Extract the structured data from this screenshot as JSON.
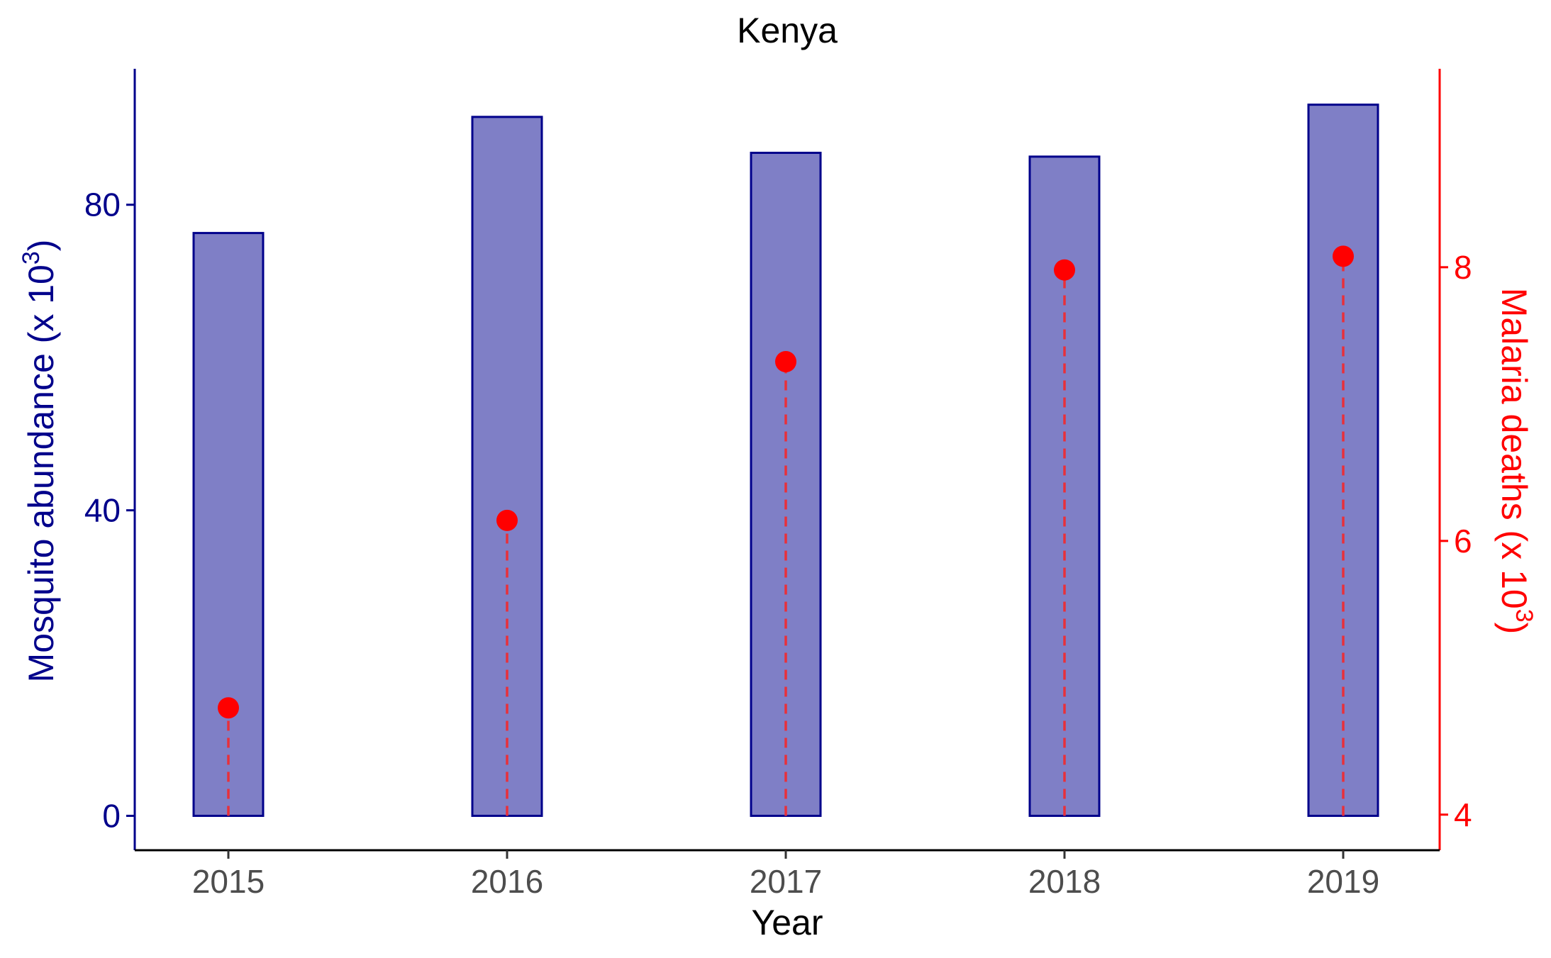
{
  "chart_data": {
    "type": "bar",
    "title": "Kenya",
    "xlabel": "Year",
    "ylabel_left": {
      "text": "Mosquito abundance (x 10",
      "sup": "3",
      "close": ")"
    },
    "ylabel_right": {
      "text": "Malaria deaths (x 10",
      "sup": "3",
      "close": ")"
    },
    "categories": [
      "2015",
      "2016",
      "2017",
      "2018",
      "2019"
    ],
    "series": [
      {
        "name": "Mosquito abundance",
        "type": "bar",
        "axis": "left",
        "values": [
          76.3,
          91.5,
          86.8,
          86.3,
          93.1
        ]
      },
      {
        "name": "Malaria deaths",
        "type": "lollipop",
        "axis": "right",
        "values": [
          4.78,
          6.15,
          7.31,
          7.98,
          8.08
        ]
      }
    ],
    "y_left": {
      "lim": [
        -4.5,
        97.8
      ],
      "ticks": [
        0,
        40,
        80
      ]
    },
    "y_right": {
      "lim": [
        3.74,
        9.45
      ],
      "ticks": [
        4,
        6,
        8
      ]
    },
    "grid": false,
    "legend": "none"
  },
  "colors": {
    "bar_fill": "#7f7fc6",
    "bar_stroke": "#00008b",
    "left_axis": "#00008b",
    "right_axis": "#ff0000",
    "dots": "#ff0000",
    "stems": "#e8303a",
    "x_tick_text": "#4d4d4d",
    "text": "#000000"
  }
}
